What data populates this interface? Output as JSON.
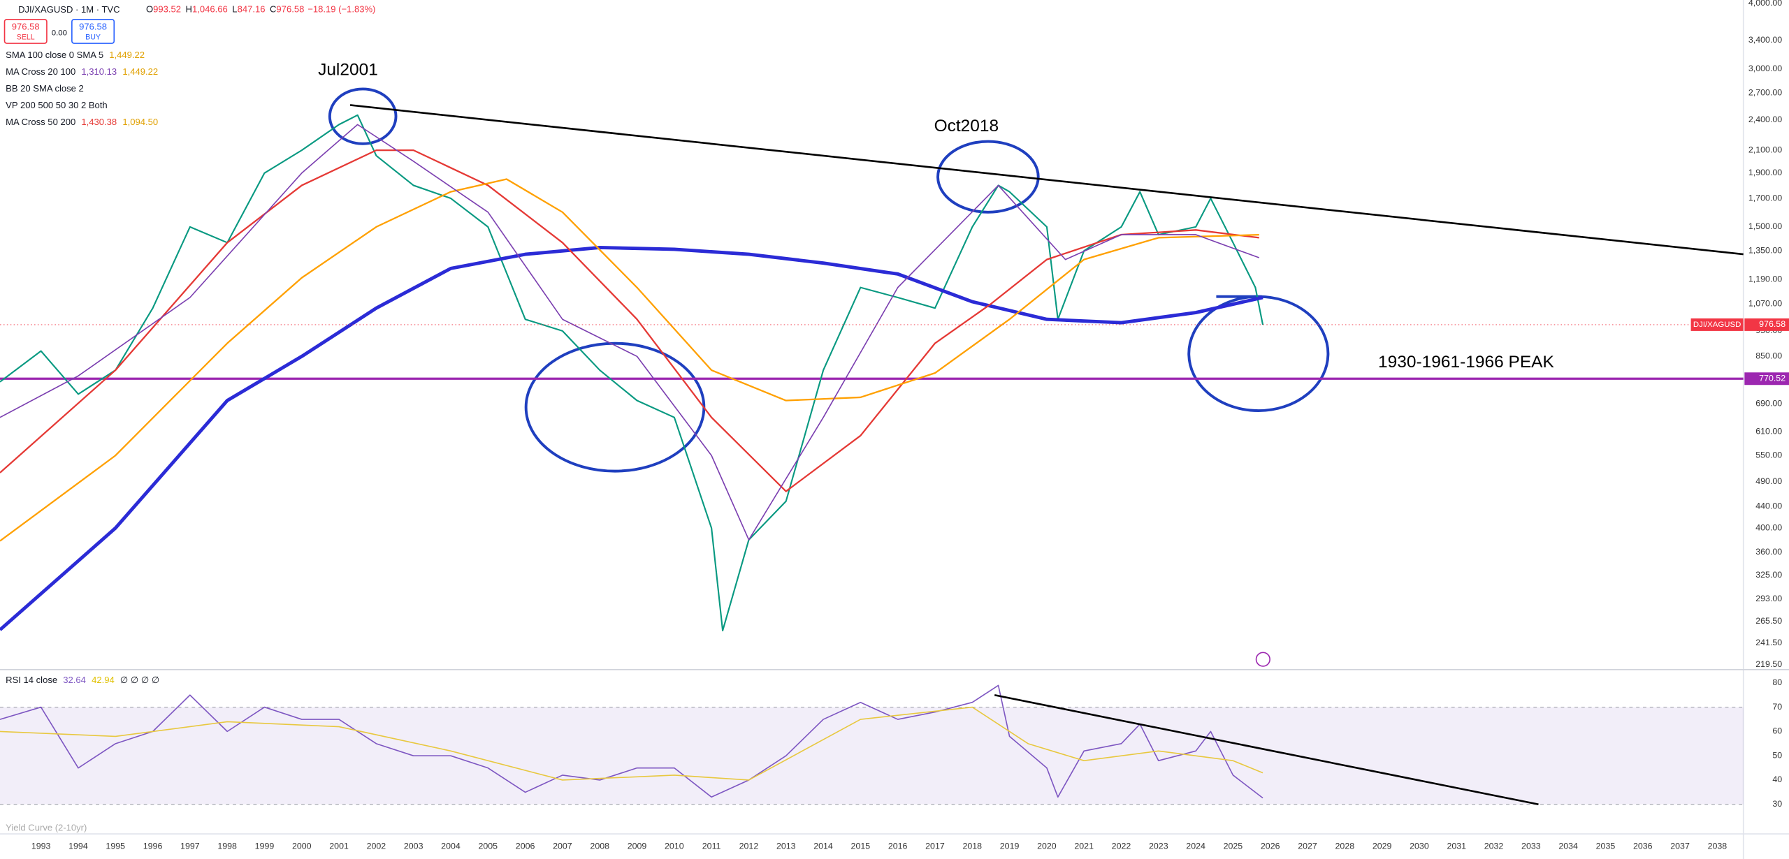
{
  "header": {
    "symbol": "DJI/XAGUSD · 1M · TVC",
    "ohlc": [
      [
        "O",
        "993.52"
      ],
      [
        "H",
        "1,046.66"
      ],
      [
        "L",
        "847.16"
      ],
      [
        "C",
        "976.58"
      ]
    ],
    "change": "−18.19 (−1.83%)",
    "sell": [
      "976.58",
      "SELL"
    ],
    "spread": "0.00",
    "buy": [
      "976.58",
      "BUY"
    ],
    "legend": [
      {
        "label": "SMA 100 close 0 SMA 5",
        "values": [
          "1,449.22"
        ],
        "colors": [
          "#e0a000"
        ]
      },
      {
        "label": "MA Cross 20 100",
        "values": [
          "1,310.13",
          "1,449.22"
        ],
        "colors": [
          "#7b3fb0",
          "#e0a000"
        ]
      },
      {
        "label": "BB 20 SMA close 2",
        "values": [],
        "colors": []
      },
      {
        "label": "VP 200 500 50 30 2 Both",
        "values": [],
        "colors": []
      },
      {
        "label": "MA Cross 50 200",
        "values": [
          "1,430.38",
          "1,094.50"
        ],
        "colors": [
          "#e53935",
          "#e0a000"
        ]
      }
    ],
    "rsi_legend": {
      "label": "RSI 14 close",
      "values": [
        "32.64",
        "42.94",
        "∅ ∅ ∅ ∅"
      ],
      "colors": [
        "#7e57c2",
        "#e0c000",
        "#131722"
      ]
    },
    "yield_label": "Yield Curve (2-10yr)"
  },
  "annotations": [
    "Jul2001",
    "Oct2018"
  ],
  "chart_data": [
    {
      "type": "line",
      "log_scale": true,
      "xlim": [
        1991.9,
        2038.7
      ],
      "ylim": [
        216,
        4060
      ],
      "xticks": [
        1993,
        1994,
        1995,
        1996,
        1997,
        1998,
        1999,
        2000,
        2001,
        2002,
        2003,
        2004,
        2005,
        2006,
        2007,
        2008,
        2009,
        2010,
        2011,
        2012,
        2013,
        2014,
        2015,
        2016,
        2017,
        2018,
        2019,
        2020,
        2021,
        2022,
        2023,
        2024,
        2025,
        2026,
        2027,
        2028,
        2029,
        2030,
        2031,
        2032,
        2033,
        2034,
        2035,
        2036,
        2037,
        2038
      ],
      "yticks": [
        {
          "value": 4000,
          "label": "4,000.00"
        },
        {
          "value": 3400,
          "label": "3,400.00"
        },
        {
          "value": 3000,
          "label": "3,000.00"
        },
        {
          "value": 2700,
          "label": "2,700.00"
        },
        {
          "value": 2400,
          "label": "2,400.00"
        },
        {
          "value": 2100,
          "label": "2,100.00"
        },
        {
          "value": 1900,
          "label": "1,900.00"
        },
        {
          "value": 1700,
          "label": "1,700.00"
        },
        {
          "value": 1500,
          "label": "1,500.00"
        },
        {
          "value": 1350,
          "label": "1,350.00"
        },
        {
          "value": 1190,
          "label": "1,190.00"
        },
        {
          "value": 1070,
          "label": "1,070.00"
        },
        {
          "value": 950,
          "label": "950.00"
        },
        {
          "value": 850,
          "label": "850.00"
        },
        {
          "value": 690,
          "label": "690.00"
        },
        {
          "value": 610,
          "label": "610.00"
        },
        {
          "value": 550,
          "label": "550.00"
        },
        {
          "value": 490,
          "label": "490.00"
        },
        {
          "value": 440,
          "label": "440.00"
        },
        {
          "value": 400,
          "label": "400.00"
        },
        {
          "value": 360,
          "label": "360.00"
        },
        {
          "value": 325,
          "label": "325.00"
        },
        {
          "value": 293,
          "label": "293.00"
        },
        {
          "value": 265.5,
          "label": "265.50"
        },
        {
          "value": 241.5,
          "label": "241.50"
        },
        {
          "value": 219.5,
          "label": "219.50"
        }
      ],
      "series": [
        {
          "name": "DJI/XAGUSD",
          "color": "#089981",
          "width": 1.3,
          "x": [
            1991.9,
            1993,
            1994,
            1995,
            1996,
            1997,
            1998,
            1999,
            2000,
            2001,
            2001.5,
            2002,
            2003,
            2004,
            2005,
            2006,
            2007,
            2008,
            2009,
            2010,
            2011,
            2011.3,
            2012,
            2013,
            2014,
            2015,
            2016,
            2017,
            2018,
            2018.7,
            2019,
            2020,
            2020.3,
            2021,
            2022,
            2022.5,
            2023,
            2024,
            2024.4,
            2025,
            2025.6,
            2025.8
          ],
          "values": [
            760,
            870,
            720,
            800,
            1050,
            1500,
            1400,
            1900,
            2100,
            2350,
            2450,
            2050,
            1800,
            1700,
            1500,
            1000,
            950,
            800,
            700,
            650,
            400,
            255,
            380,
            450,
            800,
            1150,
            1100,
            1050,
            1500,
            1800,
            1750,
            1500,
            1000,
            1350,
            1500,
            1750,
            1450,
            1500,
            1700,
            1400,
            1150,
            976.58
          ]
        },
        {
          "color": "#2b2bd6",
          "width": 3,
          "x": [
            1991.9,
            1995,
            1998,
            2000,
            2002,
            2004,
            2006,
            2008,
            2010,
            2012,
            2014,
            2016,
            2018,
            2020,
            2022,
            2024,
            2025.8
          ],
          "values": [
            256,
            400,
            700,
            850,
            1050,
            1250,
            1330,
            1370,
            1360,
            1330,
            1280,
            1220,
            1080,
            1000,
            985,
            1030,
            1100
          ]
        },
        {
          "color": "#e53935",
          "width": 1.4,
          "x": [
            1991.9,
            1995,
            1998,
            2000,
            2002,
            2003,
            2005,
            2007,
            2009,
            2011,
            2013,
            2015,
            2017,
            2018.5,
            2020,
            2022,
            2024,
            2025.7
          ],
          "values": [
            510,
            800,
            1400,
            1800,
            2100,
            2100,
            1800,
            1400,
            1000,
            650,
            470,
            600,
            900,
            1070,
            1300,
            1450,
            1480,
            1430.38
          ]
        },
        {
          "color": "#ffa000",
          "width": 1.4,
          "x": [
            1991.9,
            1995,
            1998,
            2000,
            2002,
            2004,
            2005.5,
            2007,
            2009,
            2011,
            2013,
            2015,
            2017,
            2019,
            2021,
            2023,
            2025.7
          ],
          "values": [
            378,
            550,
            900,
            1200,
            1500,
            1750,
            1850,
            1600,
            1150,
            800,
            700,
            710,
            790,
            1000,
            1300,
            1430,
            1449.22
          ]
        },
        {
          "color": "#7b3fb0",
          "width": 1,
          "x": [
            1991.9,
            1994,
            1997,
            2000,
            2001.5,
            2003,
            2005,
            2007,
            2009,
            2011,
            2012,
            2014,
            2016,
            2018.7,
            2020.5,
            2022,
            2024,
            2025.7
          ],
          "values": [
            650,
            780,
            1100,
            1900,
            2350,
            2000,
            1600,
            1000,
            850,
            550,
            380,
            650,
            1150,
            1800,
            1300,
            1450,
            1450,
            1310.13
          ]
        }
      ],
      "hlines": [
        {
          "value": 770.52,
          "label": "1930-1961-1966 PEAK",
          "color": "#9c27b0"
        }
      ],
      "trendlines": [
        {
          "x": [
            2001.3,
            2038.7
          ],
          "values": [
            2560,
            1330
          ],
          "color": "#000"
        }
      ]
    },
    {
      "type": "line",
      "xlim": [
        1991.9,
        2038.7
      ],
      "ylim": [
        23,
        85
      ],
      "yticks": [
        80,
        70,
        60,
        50,
        40,
        30
      ],
      "band": [
        30,
        70
      ],
      "series": [
        {
          "color": "#7e57c2",
          "width": 1,
          "x": [
            1991.9,
            1993,
            1994,
            1995,
            1996,
            1997,
            1998,
            1999,
            2000,
            2001,
            2002,
            2003,
            2004,
            2005,
            2006,
            2007,
            2008,
            2009,
            2010,
            2011,
            2012,
            2013,
            2014,
            2015,
            2016,
            2017,
            2018,
            2018.7,
            2019,
            2020,
            2020.3,
            2021,
            2022,
            2022.5,
            2023,
            2024,
            2024.4,
            2025,
            2025.8
          ],
          "values": [
            65,
            70,
            45,
            55,
            60,
            75,
            60,
            70,
            65,
            65,
            55,
            50,
            50,
            45,
            35,
            42,
            40,
            45,
            45,
            33,
            40,
            50,
            65,
            72,
            65,
            68,
            72,
            79,
            58,
            45,
            33,
            52,
            55,
            63,
            48,
            52,
            60,
            42,
            32.64
          ]
        },
        {
          "color": "#e8c840",
          "width": 1,
          "x": [
            1991.9,
            1995,
            1998,
            2001,
            2004,
            2007,
            2010,
            2012,
            2015,
            2018,
            2019.5,
            2021,
            2023,
            2025,
            2025.8
          ],
          "values": [
            60,
            58,
            64,
            62,
            52,
            40,
            42,
            40,
            65,
            70,
            55,
            48,
            52,
            48,
            42.94
          ]
        }
      ],
      "trendlines": [
        {
          "x": [
            2018.6,
            2033.2
          ],
          "values": [
            75,
            30
          ],
          "color": "#000"
        }
      ]
    }
  ]
}
